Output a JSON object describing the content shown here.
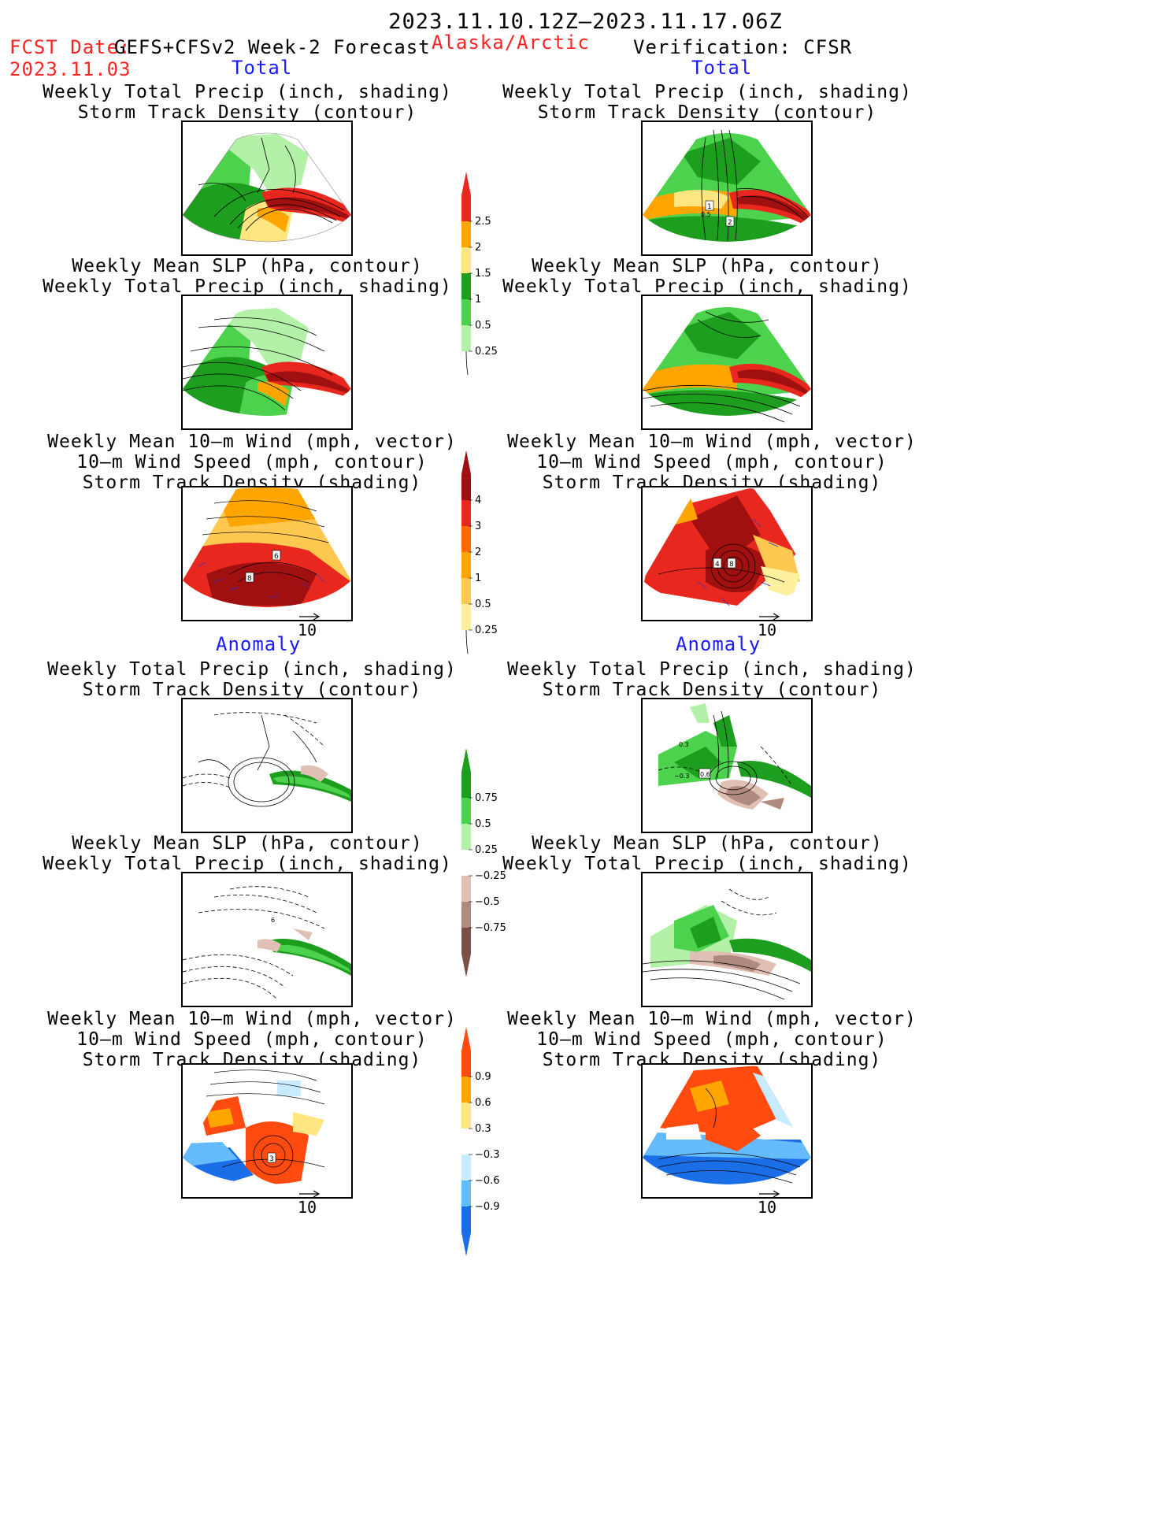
{
  "header": {
    "date_range": "2023.11.10.12Z–2023.11.17.06Z",
    "fcst_label": "FCST Date:",
    "model": "GEFS+CFSv2 Week-2 Forecast",
    "fcst_date": "2023.11.03",
    "region": "Alaska/Arctic",
    "verification": "Verification: CFSR"
  },
  "sections": {
    "total": "Total",
    "anomaly": "Anomaly"
  },
  "panel_titles": {
    "precip_track": [
      "Weekly Total Precip (inch, shading)",
      "Storm Track Density (contour)"
    ],
    "slp_precip": [
      "Weekly Mean SLP (hPa, contour)",
      "Weekly Total Precip (inch, shading)"
    ],
    "wind_track": [
      "Weekly Mean 10–m Wind (mph, vector)",
      "10–m Wind Speed (mph, contour)",
      "Storm Track Density (shading)"
    ]
  },
  "vector_ref": "10",
  "colorbars": {
    "precip_total": {
      "labels": [
        "2.5",
        "2",
        "1.5",
        "1",
        "0.5",
        "0.25"
      ],
      "colors": [
        "#e8281e",
        "#ffa500",
        "#ffe680",
        "#1e9e1e",
        "#4dd24d",
        "#b3f0a8"
      ]
    },
    "track_total": {
      "labels": [
        "4",
        "3",
        "2",
        "1",
        "0.5",
        "0.25"
      ],
      "colors": [
        "#a01010",
        "#e8281e",
        "#ff6a00",
        "#ffa500",
        "#ffc850",
        "#fff0a0"
      ]
    },
    "precip_anom": {
      "labels": [
        "0.75",
        "0.5",
        "0.25",
        "−0.25",
        "−0.5",
        "−0.75"
      ],
      "colors": [
        "#1e9e1e",
        "#4dd24d",
        "#b3f0a8",
        "#ffffff",
        "#e0c0b4",
        "#b08a7e",
        "#7a5048"
      ]
    },
    "track_anom": {
      "labels": [
        "0.9",
        "0.6",
        "0.3",
        "−0.3",
        "−0.6",
        "−0.9"
      ],
      "colors": [
        "#ff4a10",
        "#ffa500",
        "#ffe680",
        "#ffffff",
        "#c8ecff",
        "#64bcff",
        "#1a6fe8"
      ]
    }
  },
  "map_labels": {
    "fr_track_1": "1",
    "fr_track_2": "0.5",
    "fr_track_3": "2",
    "fw_1": "6",
    "fw_2": "8",
    "vw_1": "4",
    "vw_2": "8",
    "va_1": "0.3",
    "va_2": "−0.3",
    "va_3": "0.6",
    "fa_slp": "6",
    "fwa_1": "3"
  }
}
